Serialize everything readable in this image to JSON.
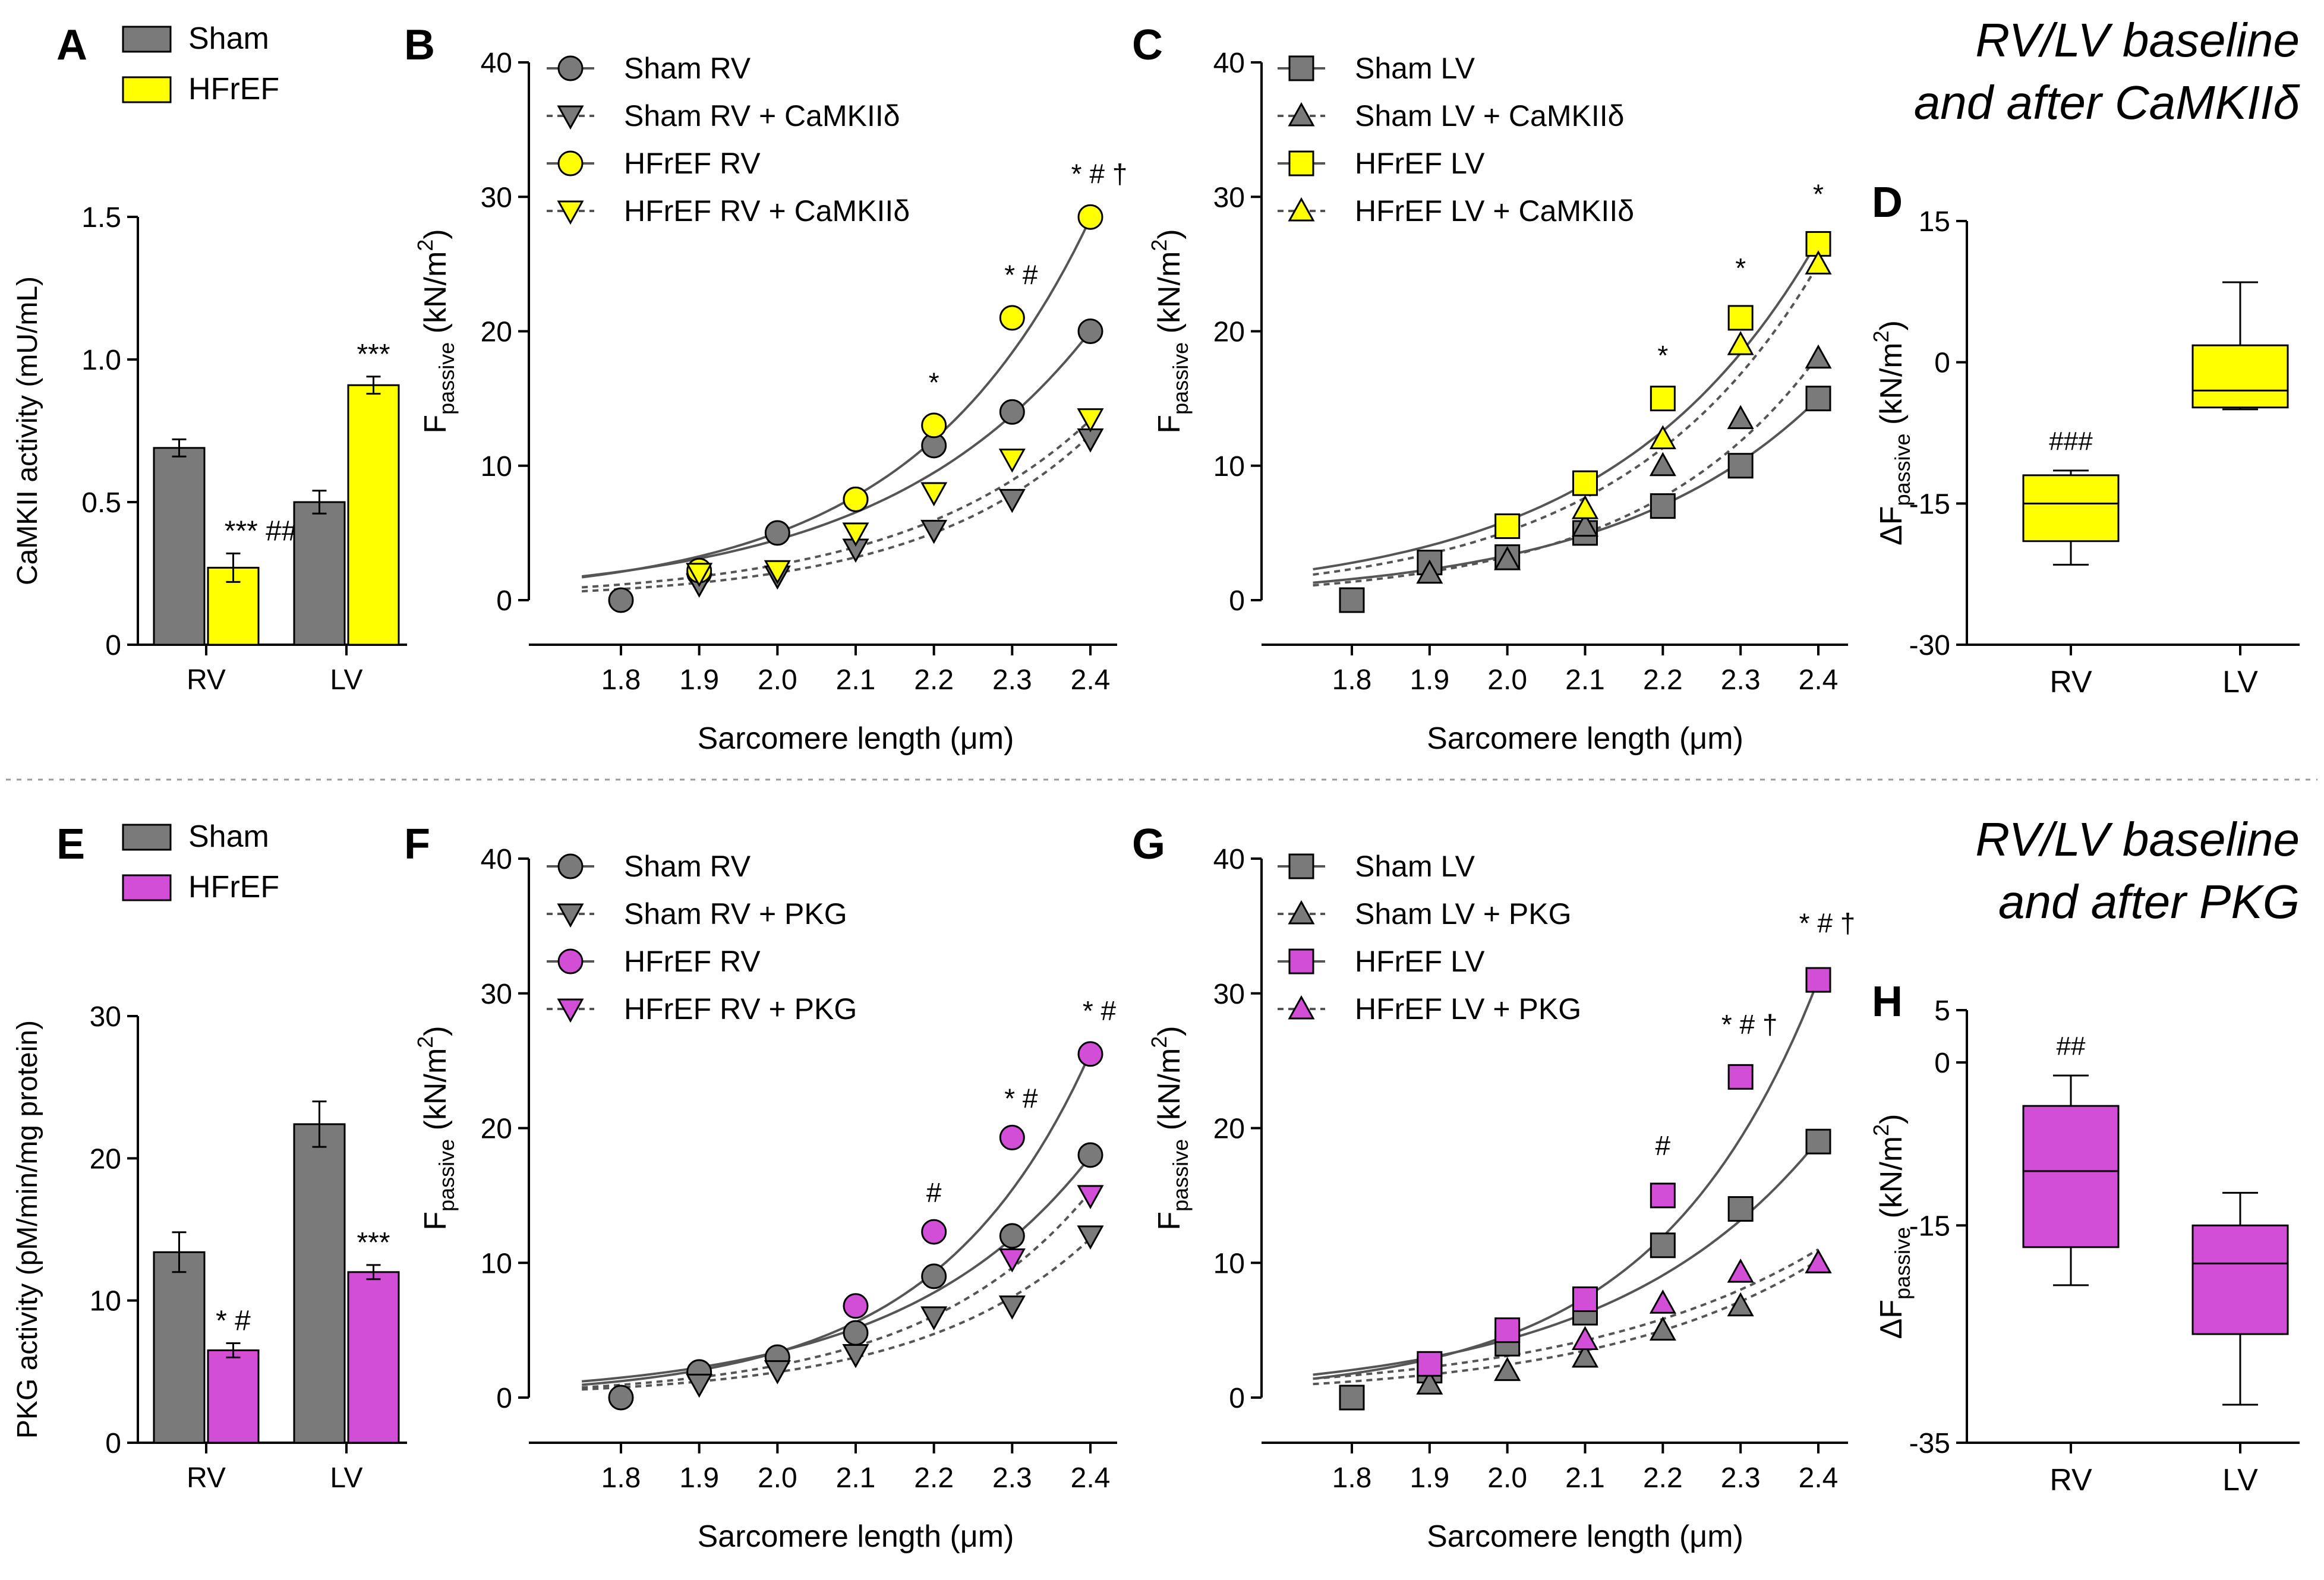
{
  "colors": {
    "sham": "#7a7a7a",
    "hfref_camkii": "#ffff00",
    "hfref_pkg": "#d24ed6",
    "axis": "#000000",
    "divider": "#9a9a9a"
  },
  "panel_labels": {
    "A": "A",
    "B": "B",
    "C": "C",
    "D": "D",
    "E": "E",
    "F": "F",
    "G": "G",
    "H": "H"
  },
  "headings": {
    "top_line1": "RV/LV baseline",
    "top_line2": "and after CaMKIIδ",
    "bottom_line1": "RV/LV baseline",
    "bottom_line2": "and after PKG"
  },
  "chart_data": [
    {
      "id": "A",
      "type": "bar",
      "ylabel": "CaMKII activity (mU/mL)",
      "categories": [
        "RV",
        "LV"
      ],
      "ylim": [
        0,
        1.5
      ],
      "yticks": [
        "0",
        "0.5",
        "1.0",
        "1.5"
      ],
      "series": [
        {
          "name": "Sham",
          "values": [
            0.69,
            0.5
          ],
          "errors": [
            0.03,
            0.04
          ]
        },
        {
          "name": "HFrEF",
          "values": [
            0.27,
            0.91
          ],
          "errors": [
            0.05,
            0.03
          ]
        }
      ],
      "annotations": [
        "*** ###",
        "***"
      ]
    },
    {
      "id": "B",
      "type": "line",
      "xlabel": "Sarcomere length (μm)",
      "ylabel": "F_passive (kN/m²)",
      "ylabel_main": "F",
      "ylabel_sub": "passive",
      "ylabel_units": " (kN/m",
      "ylabel_sup": "2",
      "ylabel_close": ")",
      "x": [
        1.8,
        1.9,
        2.0,
        2.1,
        2.2,
        2.3,
        2.4
      ],
      "xticks": [
        "1.8",
        "1.9",
        "2.0",
        "2.1",
        "2.2",
        "2.3",
        "2.4"
      ],
      "ylim": [
        0,
        40
      ],
      "yticks": [
        "0",
        "10",
        "20",
        "30",
        "40"
      ],
      "series": [
        {
          "name": "Sham RV",
          "marker": "circle",
          "color": "sham",
          "dashed": false,
          "values": [
            0,
            2,
            5,
            7.5,
            11.5,
            14,
            20
          ],
          "fit": [
            1.77,
            20.0
          ]
        },
        {
          "name": "Sham RV + CaMKIIδ",
          "marker": "tri-down",
          "color": "sham",
          "dashed": true,
          "values": [
            null,
            1.2,
            1.8,
            3.8,
            5.2,
            7.5,
            12
          ],
          "fit": [
            0.66,
            12.3
          ]
        },
        {
          "name": "HFrEF RV",
          "marker": "circle",
          "color": "hfref_camkii",
          "dashed": false,
          "values": [
            null,
            2.2,
            null,
            7.5,
            13,
            21,
            28.5
          ],
          "fit": [
            1.7,
            28.4
          ]
        },
        {
          "name": "HFrEF RV + CaMKIIδ",
          "marker": "tri-down",
          "color": "hfref_camkii",
          "dashed": true,
          "values": [
            null,
            2,
            2.2,
            5,
            8,
            10.5,
            13.5
          ],
          "fit": [
            0.95,
            13.4
          ]
        }
      ],
      "annotations": [
        {
          "x": 2.2,
          "y": 15.5,
          "text": "*"
        },
        {
          "x": 2.3,
          "y": 23.5,
          "text": "*  #"
        },
        {
          "x": 2.4,
          "y": 31,
          "text": "*  #  †"
        }
      ]
    },
    {
      "id": "C",
      "type": "line",
      "xlabel": "Sarcomere length (μm)",
      "ylabel": "F_passive (kN/m²)",
      "ylabel_main": "F",
      "ylabel_sub": "passive",
      "ylabel_units": " (kN/m",
      "ylabel_sup": "2",
      "ylabel_close": ")",
      "x": [
        1.8,
        1.9,
        2.0,
        2.1,
        2.2,
        2.3,
        2.4
      ],
      "xticks": [
        "1.8",
        "1.9",
        "2.0",
        "2.1",
        "2.2",
        "2.3",
        "2.4"
      ],
      "ylim": [
        0,
        40
      ],
      "yticks": [
        "0",
        "10",
        "20",
        "30",
        "40"
      ],
      "series": [
        {
          "name": "Sham LV",
          "marker": "square",
          "color": "sham",
          "dashed": false,
          "values": [
            0,
            2.8,
            3.2,
            5,
            7,
            10,
            15
          ],
          "fit": [
            1.3,
            15.0
          ]
        },
        {
          "name": "Sham LV + CaMKIIδ",
          "marker": "tri-up",
          "color": "sham",
          "dashed": true,
          "values": [
            null,
            2,
            3,
            5.5,
            10,
            13.5,
            18
          ],
          "fit": [
            1.1,
            18.2
          ]
        },
        {
          "name": "HFrEF LV",
          "marker": "square",
          "color": "hfref_camkii",
          "dashed": false,
          "values": [
            null,
            null,
            5.5,
            8.7,
            15,
            21,
            26.5
          ],
          "fit": [
            2.3,
            26.8
          ]
        },
        {
          "name": "HFrEF LV + CaMKIIδ",
          "marker": "tri-up",
          "color": "hfref_camkii",
          "dashed": true,
          "values": [
            null,
            null,
            null,
            6.8,
            12,
            19,
            25
          ],
          "fit": [
            1.9,
            25.0
          ]
        }
      ],
      "annotations": [
        {
          "x": 2.2,
          "y": 17.5,
          "text": "*"
        },
        {
          "x": 2.3,
          "y": 24,
          "text": "*"
        },
        {
          "x": 2.4,
          "y": 29.5,
          "text": "*"
        }
      ]
    },
    {
      "id": "D",
      "type": "box",
      "ylabel": "ΔF_passive (kN/m²)",
      "ylabel_main": "ΔF",
      "ylabel_sub": "passive",
      "ylabel_units": " (kN/m",
      "ylabel_sup": "2",
      "ylabel_close": ")",
      "categories": [
        "RV",
        "LV"
      ],
      "ylim": [
        -30,
        15
      ],
      "yticks": [
        "-30",
        "-15",
        "0",
        "15"
      ],
      "boxes": [
        {
          "name": "RV",
          "min": -21.5,
          "q1": -19,
          "median": -15,
          "q3": -12,
          "max": -11.5
        },
        {
          "name": "LV",
          "min": -5,
          "q1": -4.8,
          "median": -3,
          "q3": 1.8,
          "max": 8.5
        }
      ],
      "annotations": [
        "###",
        ""
      ]
    },
    {
      "id": "E",
      "type": "bar",
      "ylabel": "PKG activity (pM/min/mg protein)",
      "categories": [
        "RV",
        "LV"
      ],
      "ylim": [
        0,
        30
      ],
      "yticks": [
        "0",
        "10",
        "20",
        "30"
      ],
      "series": [
        {
          "name": "Sham",
          "values": [
            13.4,
            22.4
          ],
          "errors": [
            1.4,
            1.6
          ]
        },
        {
          "name": "HFrEF",
          "values": [
            6.5,
            12
          ],
          "errors": [
            0.5,
            0.5
          ]
        }
      ],
      "annotations": [
        "*  #",
        "***"
      ]
    },
    {
      "id": "F",
      "type": "line",
      "xlabel": "Sarcomere length (μm)",
      "ylabel": "F_passive (kN/m²)",
      "ylabel_main": "F",
      "ylabel_sub": "passive",
      "ylabel_units": " (kN/m",
      "ylabel_sup": "2",
      "ylabel_close": ")",
      "x": [
        1.8,
        1.9,
        2.0,
        2.1,
        2.2,
        2.3,
        2.4
      ],
      "xticks": [
        "1.8",
        "1.9",
        "2.0",
        "2.1",
        "2.2",
        "2.3",
        "2.4"
      ],
      "ylim": [
        0,
        40
      ],
      "yticks": [
        "0",
        "10",
        "20",
        "30",
        "40"
      ],
      "series": [
        {
          "name": "Sham RV",
          "marker": "circle",
          "color": "sham",
          "dashed": false,
          "values": [
            0,
            1.9,
            3,
            4.8,
            9,
            12,
            18
          ],
          "fit": [
            1.2,
            17.9
          ]
        },
        {
          "name": "Sham RV + PKG",
          "marker": "tri-down",
          "color": "sham",
          "dashed": true,
          "values": [
            null,
            1,
            2,
            3.2,
            6,
            6.8,
            12
          ],
          "fit": [
            0.6,
            11.8
          ]
        },
        {
          "name": "HFrEF RV",
          "marker": "circle",
          "color": "hfref_pkg",
          "dashed": false,
          "values": [
            null,
            null,
            null,
            6.8,
            12.3,
            19.3,
            25.5
          ],
          "fit": [
            0.95,
            25.6
          ]
        },
        {
          "name": "HFrEF RV + PKG",
          "marker": "tri-down",
          "color": "hfref_pkg",
          "dashed": true,
          "values": [
            null,
            null,
            null,
            null,
            null,
            10.3,
            15
          ],
          "fit": [
            0.75,
            15.3
          ]
        }
      ],
      "annotations": [
        {
          "x": 2.2,
          "y": 14.5,
          "text": "#"
        },
        {
          "x": 2.3,
          "y": 21.5,
          "text": "*  #"
        },
        {
          "x": 2.4,
          "y": 28,
          "text": "*  #"
        }
      ]
    },
    {
      "id": "G",
      "type": "line",
      "xlabel": "Sarcomere length (μm)",
      "ylabel": "F_passive (kN/m²)",
      "ylabel_main": "F",
      "ylabel_sub": "passive",
      "ylabel_units": " (kN/m",
      "ylabel_sup": "2",
      "ylabel_close": ")",
      "x": [
        1.8,
        1.9,
        2.0,
        2.1,
        2.2,
        2.3,
        2.4
      ],
      "xticks": [
        "1.8",
        "1.9",
        "2.0",
        "2.1",
        "2.2",
        "2.3",
        "2.4"
      ],
      "ylim": [
        0,
        40
      ],
      "yticks": [
        "0",
        "10",
        "20",
        "30",
        "40"
      ],
      "series": [
        {
          "name": "Sham LV",
          "marker": "square",
          "color": "sham",
          "dashed": false,
          "values": [
            0,
            2,
            4,
            6.3,
            11.3,
            14,
            19
          ],
          "fit": [
            1.7,
            19.1
          ]
        },
        {
          "name": "Sham LV + PKG",
          "marker": "tri-up",
          "color": "sham",
          "dashed": true,
          "values": [
            null,
            1,
            2,
            3,
            5,
            6.8,
            10
          ],
          "fit": [
            1.0,
            10.2
          ]
        },
        {
          "name": "HFrEF LV",
          "marker": "square",
          "color": "hfref_pkg",
          "dashed": false,
          "values": [
            null,
            2.5,
            5,
            7.3,
            15,
            23.8,
            31
          ],
          "fit": [
            1.4,
            31.0
          ]
        },
        {
          "name": "HFrEF LV + PKG",
          "marker": "tri-up",
          "color": "hfref_pkg",
          "dashed": true,
          "values": [
            null,
            null,
            null,
            4.3,
            7,
            9.3,
            10
          ],
          "fit": [
            1.4,
            11.0
          ]
        }
      ],
      "annotations": [
        {
          "x": 2.2,
          "y": 18,
          "text": "#"
        },
        {
          "x": 2.3,
          "y": 27,
          "text": "*  #  †"
        },
        {
          "x": 2.4,
          "y": 34.5,
          "text": "*  #  †"
        }
      ]
    },
    {
      "id": "H",
      "type": "box",
      "ylabel": "ΔF_passive (kN/m²)",
      "ylabel_main": "ΔF",
      "ylabel_sub": "passive",
      "ylabel_units": " (kN/m",
      "ylabel_sup": "2",
      "ylabel_close": ")",
      "categories": [
        "RV",
        "LV"
      ],
      "ylim": [
        -35,
        5
      ],
      "yticks": [
        "-35",
        "-15",
        "0",
        "5"
      ],
      "boxes": [
        {
          "name": "RV",
          "min": -20.5,
          "q1": -17,
          "median": -10,
          "q3": -4,
          "max": -1.2
        },
        {
          "name": "LV",
          "min": -31.5,
          "q1": -25,
          "median": -18.5,
          "q3": -15,
          "max": -12
        }
      ],
      "annotations": [
        "##",
        ""
      ]
    }
  ]
}
